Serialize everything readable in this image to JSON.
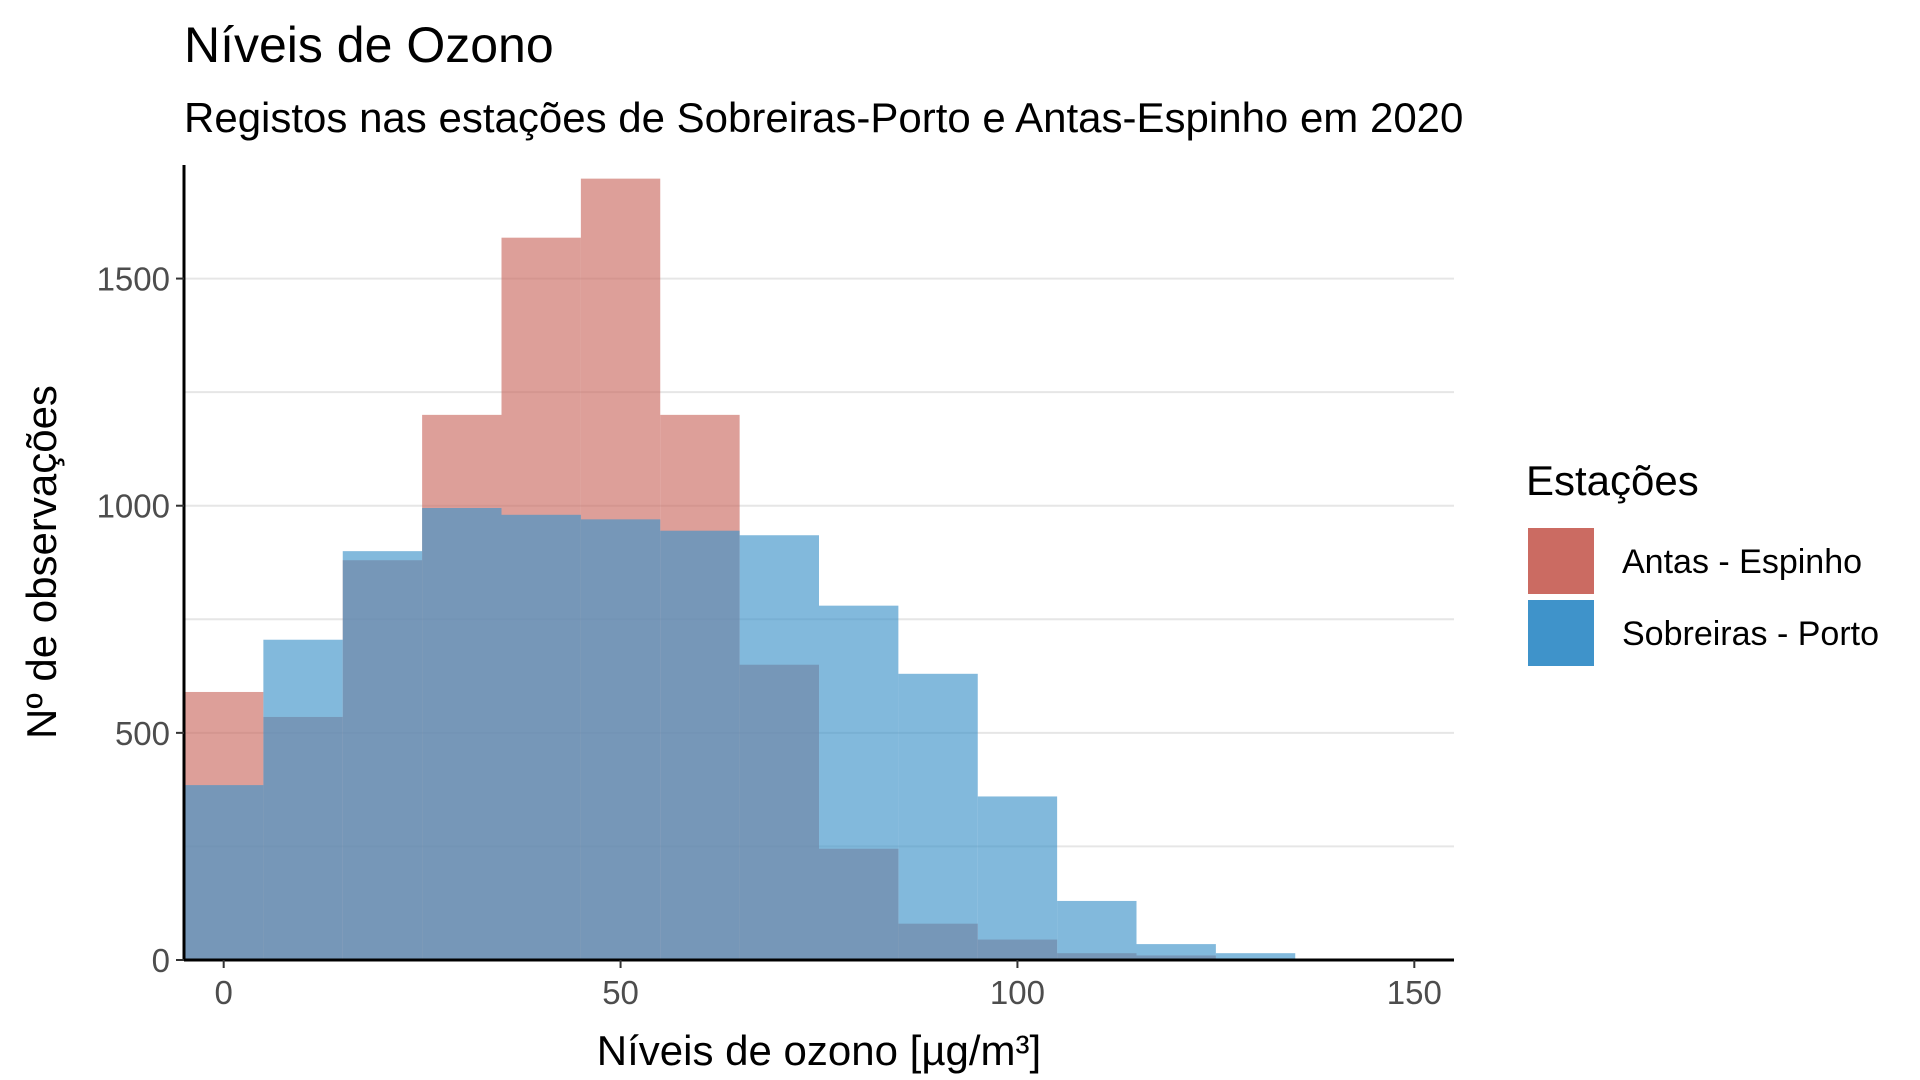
{
  "chart_data": {
    "type": "histogram",
    "title": "Níveis de Ozono",
    "subtitle": "Registos nas estações de Sobreiras-Porto e Antas-Espinho em 2020",
    "xlabel": "Níveis de ozono [µg/m³]",
    "ylabel": "Nº de observações",
    "xlim": [
      -5,
      155
    ],
    "ylim": [
      0,
      1750
    ],
    "x_ticks": [
      0,
      50,
      100,
      150
    ],
    "y_ticks": [
      0,
      500,
      1000,
      1500
    ],
    "y_grid": [
      250,
      500,
      750,
      1000,
      1250,
      1500
    ],
    "grid": true,
    "legend_title": "Estações",
    "legend_position": "right",
    "bin_edges": [
      -5,
      5,
      15,
      25,
      35,
      45,
      55,
      65,
      75,
      85,
      95,
      105,
      115,
      125,
      135,
      145,
      155
    ],
    "series": [
      {
        "name": "Antas - Espinho",
        "color": "#CB6B62",
        "fill_opacity": 0.65,
        "values": [
          590,
          535,
          880,
          1200,
          1590,
          1720,
          1200,
          650,
          245,
          80,
          45,
          15,
          10,
          0,
          3,
          0
        ]
      },
      {
        "name": "Sobreiras - Porto",
        "color": "#3F93CA",
        "fill_opacity": 0.65,
        "values": [
          385,
          705,
          900,
          995,
          980,
          970,
          945,
          935,
          780,
          630,
          360,
          130,
          35,
          15,
          3,
          0
        ]
      }
    ]
  }
}
